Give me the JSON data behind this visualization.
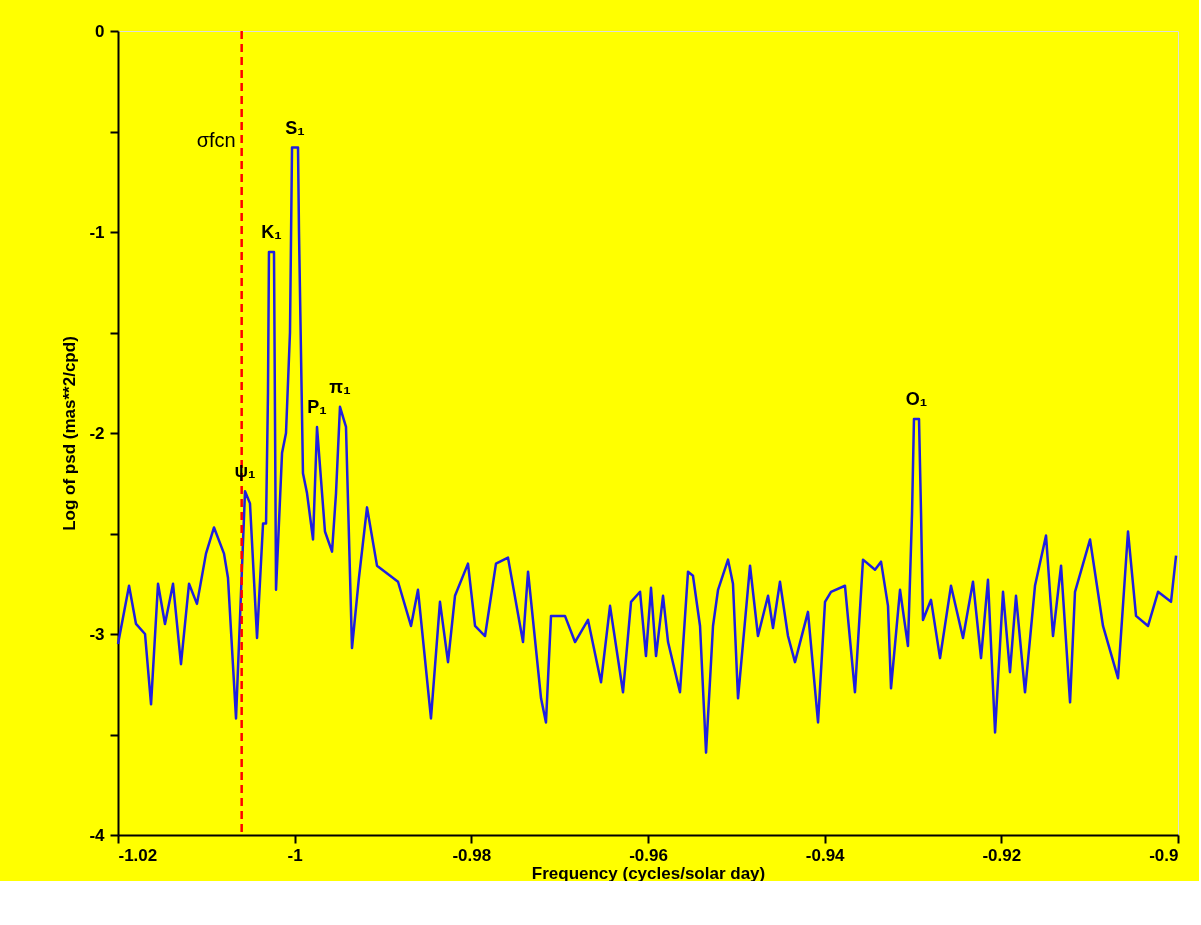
{
  "chart_data": {
    "type": "line",
    "xlabel": "Frequency (cycles/solar day)",
    "ylabel": "Log of psd (mas**2/cpd)",
    "xlim": [
      -1.02,
      -0.9
    ],
    "xticks": [
      -1.02,
      -1,
      -0.98,
      -0.96,
      -0.94,
      -0.92,
      -0.9
    ],
    "ylim": [
      -4,
      0
    ],
    "yticks": [
      0,
      {
        "value": -0.5,
        "label": null
      },
      -1,
      {
        "value": -1.5,
        "label": null
      },
      -2,
      {
        "value": -2.5,
        "label": null
      },
      -3,
      {
        "value": -3.5,
        "label": null
      },
      -4
    ],
    "grid": false,
    "marker": "none",
    "line_style": "solid",
    "series": [
      {
        "color": "#1f1fe0",
        "x": [
          -1.02,
          -1.01875,
          -1.01796,
          -1.01694,
          -1.01626,
          -1.01547,
          -1.01468,
          -1.01377,
          -1.01287,
          -1.01196,
          -1.01106,
          -1.01004,
          -1.00913,
          -1.008,
          -1.00755,
          -1.00664,
          -1.00562,
          -1.00506,
          -1.00426,
          -1.00358,
          -1.00324,
          -1.00302,
          -1.00291,
          -1.00234,
          -1.00223,
          -1.00211,
          -1.00143,
          -1.00098,
          -1.00053,
          -1.0003,
          -0.99962,
          -0.99951,
          -0.99906,
          -0.9986,
          -0.99792,
          -0.99747,
          -0.99657,
          -0.99577,
          -0.99532,
          -0.99487,
          -0.99419,
          -0.99351,
          -0.99272,
          -0.99181,
          -0.99068,
          -0.9883,
          -0.98683,
          -0.98604,
          -0.98457,
          -0.98355,
          -0.98264,
          -0.98185,
          -0.98038,
          -0.97958,
          -0.97845,
          -0.97721,
          -0.97585,
          -0.97415,
          -0.97358,
          -0.97211,
          -0.97155,
          -0.97098,
          -0.9694,
          -0.96826,
          -0.96679,
          -0.96532,
          -0.9643,
          -0.96283,
          -0.96192,
          -0.9609,
          -0.96023,
          -0.95966,
          -0.95909,
          -0.9583,
          -0.95773,
          -0.95638,
          -0.95547,
          -0.95491,
          -0.95411,
          -0.95343,
          -0.95264,
          -0.95207,
          -0.95094,
          -0.95038,
          -0.94981,
          -0.94845,
          -0.94755,
          -0.94641,
          -0.94585,
          -0.94506,
          -0.94415,
          -0.94336,
          -0.94189,
          -0.94075,
          -0.93996,
          -0.93928,
          -0.9377,
          -0.93657,
          -0.93566,
          -0.9343,
          -0.93362,
          -0.93283,
          -0.93249,
          -0.93147,
          -0.93057,
          -0.93011,
          -0.92989,
          -0.92932,
          -0.92909,
          -0.92887,
          -0.92796,
          -0.92694,
          -0.9257,
          -0.92434,
          -0.92321,
          -0.9223,
          -0.92151,
          -0.92071,
          -0.91981,
          -0.91902,
          -0.91834,
          -0.91732,
          -0.91619,
          -0.91494,
          -0.91415,
          -0.91324,
          -0.91222,
          -0.91166,
          -0.90996,
          -0.90849,
          -0.90679,
          -0.90566,
          -0.90475,
          -0.90339,
          -0.90226,
          -0.90079,
          -0.90022
        ],
        "values": [
          -3.05,
          -2.76,
          -2.95,
          -3.0,
          -3.35,
          -2.75,
          -2.95,
          -2.75,
          -3.15,
          -2.75,
          -2.85,
          -2.6,
          -2.47,
          -2.6,
          -2.72,
          -3.42,
          -2.29,
          -2.35,
          -3.02,
          -2.45,
          -2.45,
          -1.8,
          -1.1,
          -1.1,
          -1.9,
          -2.78,
          -2.1,
          -2.0,
          -1.5,
          -0.58,
          -0.58,
          -1.0,
          -2.2,
          -2.3,
          -2.53,
          -1.97,
          -2.49,
          -2.59,
          -2.3,
          -1.87,
          -1.97,
          -3.07,
          -2.72,
          -2.37,
          -2.66,
          -2.74,
          -2.96,
          -2.78,
          -3.42,
          -2.84,
          -3.14,
          -2.81,
          -2.65,
          -2.96,
          -3.01,
          -2.65,
          -2.62,
          -3.04,
          -2.69,
          -3.32,
          -3.44,
          -2.91,
          -2.91,
          -3.04,
          -2.93,
          -3.24,
          -2.86,
          -3.29,
          -2.84,
          -2.79,
          -3.11,
          -2.77,
          -3.11,
          -2.81,
          -3.04,
          -3.29,
          -2.69,
          -2.71,
          -2.96,
          -3.59,
          -2.96,
          -2.78,
          -2.63,
          -2.75,
          -3.32,
          -2.66,
          -3.01,
          -2.81,
          -2.97,
          -2.74,
          -3.01,
          -3.14,
          -2.89,
          -3.44,
          -2.84,
          -2.79,
          -2.76,
          -3.29,
          -2.63,
          -2.68,
          -2.64,
          -2.86,
          -3.27,
          -2.78,
          -3.06,
          -2.4,
          -1.93,
          -1.93,
          -2.4,
          -2.93,
          -2.83,
          -3.12,
          -2.76,
          -3.02,
          -2.74,
          -3.12,
          -2.73,
          -3.49,
          -2.79,
          -3.19,
          -2.81,
          -3.29,
          -2.76,
          -2.51,
          -3.01,
          -2.66,
          -3.34,
          -2.79,
          -2.53,
          -2.96,
          -3.22,
          -2.49,
          -2.91,
          -2.96,
          -2.79,
          -2.84,
          -2.61
        ]
      }
    ],
    "ref_lines": [
      {
        "axis": "x",
        "value": -1.006,
        "label": "σfcn",
        "color": "#ff0000",
        "line_style": "dashed"
      }
    ],
    "annotations": [
      {
        "text": "ψ₁",
        "x": -1.00562,
        "y": -2.29
      },
      {
        "text": "K₁",
        "x": -1.00262,
        "y": -1.1
      },
      {
        "text": "S₁",
        "x": -0.99996,
        "y": -0.58
      },
      {
        "text": "P₁",
        "x": -0.99747,
        "y": -1.97
      },
      {
        "text": "π₁",
        "x": -0.99487,
        "y": -1.87
      },
      {
        "text": "O₁",
        "x": -0.9296,
        "y": -1.93
      }
    ]
  }
}
